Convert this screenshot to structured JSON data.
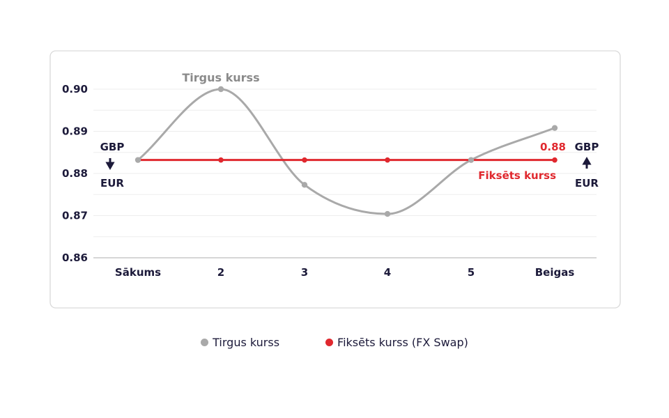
{
  "chart_data": {
    "type": "line",
    "categories": [
      "Sākums",
      "2",
      "3",
      "4",
      "5",
      "Beigas"
    ],
    "y_ticks": [
      "0.86",
      "0.87",
      "0.88",
      "0.89",
      "0.90"
    ],
    "ylim": [
      0.86,
      0.9
    ],
    "grid": true,
    "legend_placement": "bottom",
    "series": [
      {
        "name": "Tirgus kurss",
        "values": [
          0.8832,
          0.9,
          0.8773,
          0.8704,
          0.8832,
          0.8908
        ],
        "color": "#a9a9a9"
      },
      {
        "name": "Fiksēts kurss (FX Swap)",
        "values": [
          0.8832,
          0.8832,
          0.8832,
          0.8832,
          0.8832,
          0.8832
        ],
        "color": "#e0282e"
      }
    ],
    "annotations": {
      "market_label": "Tirgus kurss",
      "fixed_label": "Fiksēts kurss",
      "fixed_value": "0.88"
    },
    "side_labels": {
      "left_top": "GBP",
      "left_bottom": "EUR",
      "right_top": "GBP",
      "right_bottom": "EUR"
    }
  },
  "legend": {
    "items": [
      {
        "label": "Tirgus kurss",
        "color": "#a9a9a9"
      },
      {
        "label": "Fiksēts kurss (FX Swap)",
        "color": "#e0282e"
      }
    ]
  }
}
